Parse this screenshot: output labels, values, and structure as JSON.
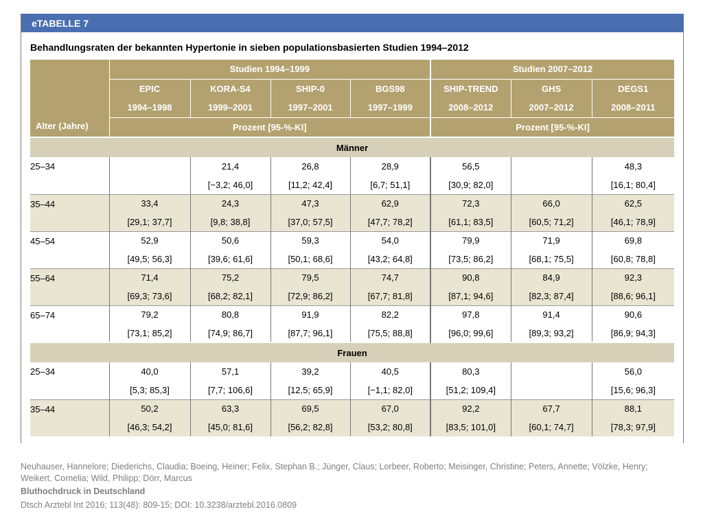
{
  "header": {
    "label": "eTABELLE 7",
    "title": "Behandlungsraten der bekannten Hypertonie in sieben populationsbasierten Studien 1994–2012"
  },
  "table": {
    "age_header": "Alter (Jahre)",
    "group1": "Studien 1994–1999",
    "group2": "Studien 2007–2012",
    "unit1": "Prozent [95-%-KI]",
    "unit2": "Prozent [95-%-KI]",
    "studies": [
      {
        "name": "EPIC",
        "years": "1994–1998"
      },
      {
        "name": "KORA-S4",
        "years": "1999–2001"
      },
      {
        "name": "SHIP-0",
        "years": "1997–2001"
      },
      {
        "name": "BGS98",
        "years": "1997–1999"
      },
      {
        "name": "SHIP-TREND",
        "years": "2008–2012"
      },
      {
        "name": "GHS",
        "years": "2007–2012"
      },
      {
        "name": "DEGS1",
        "years": "2008–2011"
      }
    ],
    "sections": [
      {
        "label": "Männer",
        "rows": [
          {
            "age": "25–34",
            "values": [
              "",
              "21,4",
              "26,8",
              "28,9",
              "56,5",
              "",
              "48,3"
            ],
            "ci": [
              "",
              "[−3,2; 46,0]",
              "[11,2; 42,4]",
              "[6,7; 51,1]",
              "[30,9; 82,0]",
              "",
              "[16,1; 80,4]"
            ]
          },
          {
            "age": "35–44",
            "values": [
              "33,4",
              "24,3",
              "47,3",
              "62,9",
              "72,3",
              "66,0",
              "62,5"
            ],
            "ci": [
              "[29,1; 37,7]",
              "[9,8; 38,8]",
              "[37,0; 57,5]",
              "[47,7; 78,2]",
              "[61,1; 83,5]",
              "[60,5; 71,2]",
              "[46,1; 78,9]"
            ]
          },
          {
            "age": "45–54",
            "values": [
              "52,9",
              "50,6",
              "59,3",
              "54,0",
              "79,9",
              "71,9",
              "69,8"
            ],
            "ci": [
              "[49,5; 56,3]",
              "[39,6; 61,6]",
              "[50,1; 68,6]",
              "[43,2; 64,8]",
              "[73,5; 86,2]",
              "[68,1; 75,5]",
              "[60,8; 78,8]"
            ]
          },
          {
            "age": "55–64",
            "values": [
              "71,4",
              "75,2",
              "79,5",
              "74,7",
              "90,8",
              "84,9",
              "92,3"
            ],
            "ci": [
              "[69,3; 73,6]",
              "[68,2; 82,1]",
              "[72,9; 86,2]",
              "[67,7; 81,8]",
              "[87,1; 94,6]",
              "[82,3; 87,4]",
              "[88,6; 96,1]"
            ]
          },
          {
            "age": "65–74",
            "values": [
              "79,2",
              "80,8",
              "91,9",
              "82,2",
              "97,8",
              "91,4",
              "90,6"
            ],
            "ci": [
              "[73,1; 85,2]",
              "[74,9; 86,7]",
              "[87,7; 96,1]",
              "[75,5; 88,8]",
              "[96,0; 99,6]",
              "[89,3; 93,2]",
              "[86,9; 94,3]"
            ]
          }
        ]
      },
      {
        "label": "Frauen",
        "rows": [
          {
            "age": "25–34",
            "values": [
              "40,0",
              "57,1",
              "39,2",
              "40,5",
              "80,3",
              "",
              "56,0"
            ],
            "ci": [
              "[5,3; 85,3]",
              "[7,7; 106,6]",
              "[12,5; 65,9]",
              "[−1,1; 82,0]",
              "[51,2; 109,4]",
              "",
              "[15,6; 96,3]"
            ]
          },
          {
            "age": "35–44",
            "values": [
              "50,2",
              "63,3",
              "69,5",
              "67,0",
              "92,2",
              "67,7",
              "88,1"
            ],
            "ci": [
              "[46,3; 54,2]",
              "[45,0; 81,6]",
              "[56,2; 82,8]",
              "[53,2; 80,8]",
              "[83,5; 101,0]",
              "[60,1; 74,7]",
              "[78,3; 97,9]"
            ]
          }
        ]
      }
    ]
  },
  "source": {
    "authors": "Neuhauser, Hannelore; Diederichs, Claudia; Boeing, Heiner; Felix, Stephan B.; Jünger, Claus; Lorbeer, Roberto; Meisinger, Christine; Peters, Annette; Völzke, Henry; Weikert, Cornelia; Wild, Philipp; Dörr, Marcus",
    "article": "Bluthochdruck in Deutschland",
    "citation": "Dtsch Arztebl Int 2016; 113(48): 809-15; DOI: 10.3238/arztebl.2016.0809"
  },
  "colors": {
    "title_bar": "#4a6fb1",
    "header": "#b3a26f",
    "section": "#d6d0b8",
    "shade": "#e9e5d3"
  }
}
